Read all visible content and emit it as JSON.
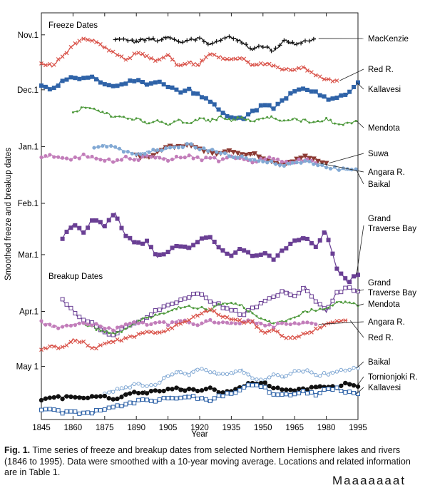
{
  "chart_data": {
    "type": "line",
    "title": "",
    "xlabel": "Year",
    "ylabel": "Smoothed freeze and breakup dates",
    "xlim": [
      1845,
      1995
    ],
    "x_ticks": [
      "1845",
      "1860",
      "1875",
      "1890",
      "1905",
      "1920",
      "1935",
      "1950",
      "1965",
      "1980",
      "1995"
    ],
    "y_ticks": [
      "Nov.1",
      "Dec.1",
      "Jan.1",
      "Feb.1",
      "Mar.1",
      "Apr.1",
      "May 1"
    ],
    "y_tick_values": [
      0,
      30,
      61,
      92,
      120,
      151,
      181
    ],
    "ylim": [
      -12,
      210
    ],
    "y_inverted": true,
    "y_units": "days after Nov. 1",
    "annotations": [
      "Freeze Dates",
      "Breakup Dates"
    ],
    "colors": {
      "black": "#111111",
      "red": "#d9534a",
      "blue": "#2f63a8",
      "green": "#4f9a3d",
      "brown": "#8c3a33",
      "pink": "#c27dba",
      "lightblue": "#82a9d4",
      "purple": "#6a3f94"
    },
    "series": [
      {
        "name": "MacKenzie",
        "group": "freeze",
        "color": "black",
        "marker": "plus",
        "x": [
          1880,
          1885,
          1890,
          1895,
          1900,
          1905,
          1910,
          1915,
          1920,
          1925,
          1930,
          1935,
          1940,
          1945,
          1950,
          1955,
          1960,
          1965,
          1970,
          1975
        ],
        "y": [
          2,
          3,
          4,
          2,
          3,
          1,
          4,
          3,
          2,
          5,
          3,
          1,
          4,
          8,
          6,
          9,
          3,
          5,
          4,
          2
        ]
      },
      {
        "name": "Red R.",
        "group": "freeze",
        "color": "red",
        "marker": "x",
        "x": [
          1845,
          1850,
          1855,
          1860,
          1865,
          1870,
          1875,
          1880,
          1885,
          1890,
          1895,
          1900,
          1905,
          1910,
          1915,
          1920,
          1925,
          1930,
          1935,
          1940,
          1945,
          1950,
          1955,
          1960,
          1965,
          1970,
          1975,
          1980,
          1985
        ],
        "y": [
          15,
          17,
          12,
          6,
          2,
          3,
          7,
          10,
          14,
          10,
          12,
          14,
          11,
          17,
          15,
          16,
          10,
          12,
          14,
          13,
          17,
          16,
          17,
          19,
          19,
          18,
          22,
          25,
          25
        ]
      },
      {
        "name": "Kallavesi",
        "group": "freeze",
        "color": "blue",
        "marker": "square",
        "x": [
          1845,
          1850,
          1855,
          1860,
          1865,
          1870,
          1875,
          1880,
          1885,
          1890,
          1895,
          1900,
          1905,
          1910,
          1915,
          1920,
          1925,
          1930,
          1935,
          1940,
          1945,
          1950,
          1955,
          1960,
          1965,
          1970,
          1975,
          1980,
          1985,
          1990,
          1995
        ],
        "y": [
          27,
          30,
          25,
          23,
          24,
          23,
          27,
          28,
          26,
          25,
          27,
          26,
          28,
          31,
          30,
          33,
          36,
          42,
          45,
          46,
          42,
          38,
          40,
          35,
          31,
          30,
          31,
          35,
          34,
          32,
          26
        ]
      },
      {
        "name": "Mendota",
        "group": "freeze",
        "color": "green",
        "marker": "dot",
        "x": [
          1860,
          1865,
          1870,
          1875,
          1880,
          1885,
          1890,
          1895,
          1900,
          1905,
          1910,
          1915,
          1920,
          1925,
          1930,
          1935,
          1940,
          1945,
          1950,
          1955,
          1960,
          1965,
          1970,
          1975,
          1980,
          1985,
          1990,
          1995
        ],
        "y": [
          42,
          40,
          41,
          43,
          45,
          45,
          46,
          48,
          47,
          49,
          47,
          48,
          46,
          47,
          45,
          47,
          45,
          47,
          46,
          45,
          47,
          46,
          47,
          48,
          46,
          49,
          48,
          47
        ]
      },
      {
        "name": "Suwa",
        "group": "freeze",
        "color": "brown",
        "marker": "triangle",
        "x": [
          1890,
          1895,
          1900,
          1905,
          1910,
          1915,
          1920,
          1925,
          1930,
          1935,
          1940,
          1945,
          1950,
          1955,
          1960,
          1965,
          1970,
          1975,
          1980
        ],
        "y": [
          66,
          67,
          64,
          60,
          61,
          60,
          62,
          64,
          65,
          63,
          66,
          65,
          67,
          69,
          71,
          69,
          66,
          68,
          70
        ]
      },
      {
        "name": "Angara R.",
        "group": "freeze",
        "color": "pink",
        "marker": "circle",
        "x": [
          1845,
          1850,
          1855,
          1860,
          1865,
          1870,
          1875,
          1880,
          1885,
          1890,
          1895,
          1900,
          1905,
          1910,
          1915,
          1920,
          1925,
          1930,
          1935,
          1940,
          1945,
          1950,
          1955,
          1960,
          1965,
          1970,
          1975
        ],
        "y": [
          67,
          66,
          67,
          68,
          66,
          67,
          68,
          69,
          67,
          68,
          66,
          67,
          68,
          67,
          66,
          68,
          67,
          69,
          67,
          68,
          69,
          68,
          67,
          70,
          69,
          68,
          70
        ]
      },
      {
        "name": "Baikal",
        "group": "freeze",
        "color": "lightblue",
        "marker": "circle",
        "x": [
          1870,
          1875,
          1880,
          1885,
          1890,
          1895,
          1900,
          1905,
          1910,
          1915,
          1920,
          1925,
          1930,
          1935,
          1940,
          1945,
          1950,
          1955,
          1960,
          1965,
          1970,
          1975,
          1980,
          1985,
          1990,
          1995
        ],
        "y": [
          61,
          60,
          62,
          64,
          65,
          64,
          63,
          62,
          61,
          60,
          62,
          63,
          64,
          66,
          67,
          68,
          69,
          70,
          71,
          70,
          69,
          71,
          72,
          73,
          74,
          74
        ]
      },
      {
        "name": "Grand Traverse Bay",
        "group": "freeze",
        "color": "purple",
        "marker": "square",
        "x": [
          1855,
          1860,
          1865,
          1870,
          1875,
          1880,
          1885,
          1890,
          1895,
          1900,
          1905,
          1910,
          1915,
          1920,
          1925,
          1930,
          1935,
          1940,
          1945,
          1950,
          1955,
          1960,
          1965,
          1970,
          1975,
          1980,
          1985,
          1990,
          1995
        ],
        "y": [
          111,
          103,
          108,
          100,
          105,
          97,
          110,
          114,
          113,
          121,
          118,
          115,
          117,
          112,
          110,
          118,
          120,
          116,
          121,
          119,
          122,
          117,
          113,
          110,
          115,
          107,
          128,
          135,
          131
        ]
      },
      {
        "name": "Grand Traverse Bay",
        "group": "breakup",
        "color": "purple",
        "marker": "open-square",
        "x": [
          1855,
          1860,
          1865,
          1870,
          1875,
          1880,
          1885,
          1890,
          1895,
          1900,
          1905,
          1910,
          1915,
          1920,
          1925,
          1930,
          1935,
          1940,
          1945,
          1950,
          1955,
          1960,
          1965,
          1970,
          1975,
          1980,
          1985,
          1990,
          1995
        ],
        "y": [
          145,
          151,
          156,
          158,
          162,
          164,
          159,
          157,
          154,
          150,
          148,
          146,
          143,
          141,
          145,
          148,
          150,
          153,
          149,
          146,
          143,
          140,
          142,
          138,
          145,
          151,
          141,
          138,
          140
        ]
      },
      {
        "name": "Mendota",
        "group": "breakup",
        "color": "green",
        "marker": "dot",
        "x": [
          1865,
          1870,
          1875,
          1880,
          1885,
          1890,
          1895,
          1900,
          1905,
          1910,
          1915,
          1920,
          1925,
          1930,
          1935,
          1940,
          1945,
          1950,
          1955,
          1960,
          1965,
          1970,
          1975,
          1980,
          1985,
          1990,
          1995
        ],
        "y": [
          158,
          160,
          162,
          163,
          161,
          157,
          154,
          153,
          151,
          149,
          148,
          149,
          150,
          147,
          146,
          148,
          152,
          156,
          157,
          156,
          154,
          151,
          150,
          149,
          146,
          146,
          148
        ]
      },
      {
        "name": "Angara R.",
        "group": "breakup",
        "color": "pink",
        "marker": "circle",
        "x": [
          1845,
          1850,
          1855,
          1860,
          1865,
          1870,
          1875,
          1880,
          1885,
          1890,
          1895,
          1900,
          1905,
          1910,
          1915,
          1920,
          1925,
          1930,
          1935,
          1940,
          1945,
          1950,
          1955,
          1960,
          1965,
          1970,
          1975
        ],
        "y": [
          157,
          159,
          160,
          158,
          157,
          158,
          160,
          161,
          158,
          157,
          158,
          157,
          158,
          156,
          157,
          158,
          156,
          157,
          158,
          157,
          156,
          158,
          159,
          157,
          158,
          157,
          158
        ]
      },
      {
        "name": "Red R.",
        "group": "breakup",
        "color": "red",
        "marker": "x",
        "x": [
          1845,
          1850,
          1855,
          1860,
          1865,
          1870,
          1875,
          1880,
          1885,
          1890,
          1895,
          1900,
          1905,
          1910,
          1915,
          1920,
          1925,
          1930,
          1935,
          1940,
          1945,
          1950,
          1955,
          1960,
          1965,
          1970,
          1975,
          1980,
          1985,
          1990
        ],
        "y": [
          172,
          170,
          171,
          166,
          168,
          171,
          169,
          167,
          166,
          164,
          162,
          163,
          161,
          158,
          155,
          152,
          150,
          153,
          155,
          157,
          157,
          162,
          161,
          165,
          165,
          163,
          161,
          158,
          156,
          156
        ]
      },
      {
        "name": "Baikal",
        "group": "breakup",
        "color": "lightblue",
        "marker": "open-circle",
        "x": [
          1875,
          1880,
          1885,
          1890,
          1895,
          1900,
          1905,
          1910,
          1915,
          1920,
          1925,
          1930,
          1935,
          1940,
          1945,
          1950,
          1955,
          1960,
          1965,
          1970,
          1975,
          1980,
          1985,
          1990,
          1995
        ],
        "y": [
          195,
          194,
          193,
          190,
          192,
          190,
          186,
          184,
          185,
          182,
          184,
          186,
          185,
          183,
          187,
          189,
          185,
          187,
          184,
          183,
          186,
          185,
          184,
          183,
          182
        ]
      },
      {
        "name": "Tornionjoki R.",
        "group": "breakup",
        "color": "black",
        "marker": "dot",
        "x": [
          1845,
          1850,
          1855,
          1860,
          1865,
          1870,
          1875,
          1880,
          1885,
          1890,
          1895,
          1900,
          1905,
          1910,
          1915,
          1920,
          1925,
          1930,
          1935,
          1940,
          1945,
          1950,
          1955,
          1960,
          1965,
          1970,
          1975,
          1980,
          1985,
          1990,
          1995
        ],
        "y": [
          199,
          198,
          198,
          197,
          198,
          198,
          197,
          199,
          196,
          195,
          195,
          194,
          194,
          193,
          194,
          194,
          193,
          195,
          194,
          192,
          190,
          190,
          193,
          193,
          194,
          193,
          193,
          192,
          192,
          190,
          192
        ]
      },
      {
        "name": "Kallavesi",
        "group": "breakup",
        "color": "blue",
        "marker": "open-square",
        "x": [
          1845,
          1850,
          1855,
          1860,
          1865,
          1870,
          1875,
          1880,
          1885,
          1890,
          1895,
          1900,
          1905,
          1910,
          1915,
          1920,
          1925,
          1930,
          1935,
          1940,
          1945,
          1950,
          1955,
          1960,
          1965,
          1970,
          1975,
          1980,
          1985,
          1990,
          1995
        ],
        "y": [
          204,
          205,
          206,
          206,
          207,
          206,
          204,
          203,
          202,
          200,
          199,
          200,
          198,
          198,
          197,
          199,
          200,
          197,
          196,
          193,
          191,
          192,
          197,
          196,
          196,
          195,
          196,
          194,
          193,
          195,
          196
        ]
      }
    ]
  },
  "caption": {
    "label": "Fig. 1.",
    "text": "Time series of freeze and breakup dates from selected Northern Hemisphere lakes and rivers (1846 to 1995). Data were smoothed with a 10-year moving average. Locations and related information are in Table 1."
  },
  "partial_text": "Maaaaaaat"
}
